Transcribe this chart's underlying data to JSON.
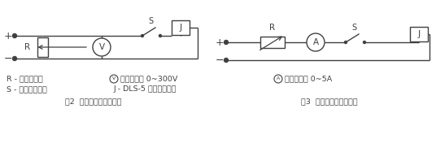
{
  "bg_color": "#ffffff",
  "line_color": "#404040",
  "fig_width": 5.36,
  "fig_height": 1.82,
  "dpi": 100,
  "caption1": "图2  动作电压检验线路图",
  "caption2": "图3  动作电流检验线路图",
  "legend_R": "R - 滑线电阻器",
  "legend_S": "S - 单刀单掷开关",
  "legend_V": "直流电压表 0~300V",
  "legend_J": "J - DLS-5 双位置继电器",
  "legend_A": "直流电流表 0~5A"
}
